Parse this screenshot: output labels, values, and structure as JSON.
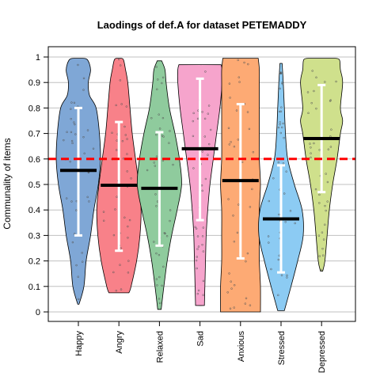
{
  "chart_data": {
    "type": "violin",
    "title": "Laodings of def.A for dataset PETEMADDY",
    "xlabel": "",
    "ylabel": "Communality of items",
    "ylim": [
      -0.04,
      1.04
    ],
    "yticks": [
      0,
      0.1,
      0.2,
      0.3,
      0.4,
      0.5,
      0.6,
      0.7,
      0.8,
      0.9,
      1
    ],
    "ytick_labels": [
      "0",
      "0.1",
      "0.2",
      "0.3",
      "0.4",
      "0.5",
      "0.6",
      "0.7",
      "0.8",
      "0.9",
      "1"
    ],
    "grid": "horizontal",
    "reference_line": {
      "y": 0.6,
      "color": "#ff0000",
      "style": "dashed"
    },
    "categories": [
      "Happy",
      "Angry",
      "Relaxed",
      "Sad",
      "Anxious",
      "Stressed",
      "Depressed"
    ],
    "series": [
      {
        "color": "#7fa7d6",
        "median": 0.555,
        "error_low": 0.3,
        "error_high": 0.8,
        "min": 0.03,
        "max": 0.995,
        "profile": [
          [
            0.03,
            0.03
          ],
          [
            0.1,
            0.25
          ],
          [
            0.2,
            0.35
          ],
          [
            0.3,
            0.55
          ],
          [
            0.4,
            0.7
          ],
          [
            0.5,
            0.9
          ],
          [
            0.6,
            1.0
          ],
          [
            0.7,
            0.95
          ],
          [
            0.8,
            0.8
          ],
          [
            0.85,
            0.5
          ],
          [
            0.9,
            0.45
          ],
          [
            0.95,
            0.55
          ],
          [
            0.99,
            0.4
          ],
          [
            0.995,
            0.1
          ]
        ]
      },
      {
        "color": "#f88189",
        "median": 0.497,
        "error_low": 0.24,
        "error_high": 0.745,
        "min": 0.075,
        "max": 0.995,
        "profile": [
          [
            0.075,
            0.45
          ],
          [
            0.1,
            0.55
          ],
          [
            0.2,
            0.8
          ],
          [
            0.3,
            0.95
          ],
          [
            0.4,
            1.0
          ],
          [
            0.5,
            0.9
          ],
          [
            0.6,
            0.75
          ],
          [
            0.7,
            0.6
          ],
          [
            0.8,
            0.5
          ],
          [
            0.9,
            0.4
          ],
          [
            0.95,
            0.3
          ],
          [
            0.99,
            0.2
          ],
          [
            0.995,
            0.05
          ]
        ]
      },
      {
        "color": "#8fcb9d",
        "median": 0.485,
        "error_low": 0.26,
        "error_high": 0.705,
        "min": 0.01,
        "max": 0.985,
        "profile": [
          [
            0.01,
            0.08
          ],
          [
            0.1,
            0.2
          ],
          [
            0.2,
            0.35
          ],
          [
            0.3,
            0.55
          ],
          [
            0.4,
            0.8
          ],
          [
            0.5,
            1.0
          ],
          [
            0.6,
            0.9
          ],
          [
            0.7,
            0.7
          ],
          [
            0.8,
            0.45
          ],
          [
            0.9,
            0.3
          ],
          [
            0.95,
            0.25
          ],
          [
            0.985,
            0.1
          ]
        ]
      },
      {
        "color": "#f6a4cc",
        "median": 0.64,
        "error_low": 0.36,
        "error_high": 0.915,
        "min": 0.025,
        "max": 0.97,
        "profile": [
          [
            0.025,
            0.2
          ],
          [
            0.1,
            0.22
          ],
          [
            0.2,
            0.25
          ],
          [
            0.3,
            0.28
          ],
          [
            0.4,
            0.35
          ],
          [
            0.5,
            0.45
          ],
          [
            0.6,
            0.6
          ],
          [
            0.7,
            0.75
          ],
          [
            0.8,
            0.9
          ],
          [
            0.9,
            1.0
          ],
          [
            0.95,
            1.0
          ],
          [
            0.97,
            0.95
          ]
        ]
      },
      {
        "color": "#fdaa74",
        "median": 0.515,
        "error_low": 0.21,
        "error_high": 0.815,
        "min": 0.0,
        "max": 0.995,
        "profile": [
          [
            0.0,
            0.9
          ],
          [
            0.1,
            0.9
          ],
          [
            0.2,
            0.85
          ],
          [
            0.3,
            0.85
          ],
          [
            0.4,
            0.85
          ],
          [
            0.5,
            0.9
          ],
          [
            0.6,
            0.85
          ],
          [
            0.7,
            0.85
          ],
          [
            0.8,
            0.85
          ],
          [
            0.9,
            0.85
          ],
          [
            0.95,
            0.85
          ],
          [
            0.995,
            0.8
          ]
        ]
      },
      {
        "color": "#8ccbf3",
        "median": 0.365,
        "error_low": 0.155,
        "error_high": 0.575,
        "min": 0.005,
        "max": 0.975,
        "profile": [
          [
            0.005,
            0.15
          ],
          [
            0.1,
            0.45
          ],
          [
            0.2,
            0.75
          ],
          [
            0.3,
            1.0
          ],
          [
            0.4,
            0.95
          ],
          [
            0.5,
            0.6
          ],
          [
            0.6,
            0.3
          ],
          [
            0.7,
            0.2
          ],
          [
            0.8,
            0.15
          ],
          [
            0.9,
            0.1
          ],
          [
            0.975,
            0.05
          ]
        ]
      },
      {
        "color": "#cfe08c",
        "median": 0.68,
        "error_low": 0.47,
        "error_high": 0.89,
        "min": 0.16,
        "max": 0.995,
        "profile": [
          [
            0.16,
            0.05
          ],
          [
            0.2,
            0.15
          ],
          [
            0.3,
            0.25
          ],
          [
            0.4,
            0.35
          ],
          [
            0.5,
            0.5
          ],
          [
            0.6,
            0.7
          ],
          [
            0.7,
            0.85
          ],
          [
            0.75,
            0.95
          ],
          [
            0.8,
            0.85
          ],
          [
            0.9,
            0.95
          ],
          [
            0.95,
            0.85
          ],
          [
            0.99,
            0.8
          ],
          [
            0.995,
            0.5
          ]
        ]
      }
    ]
  }
}
